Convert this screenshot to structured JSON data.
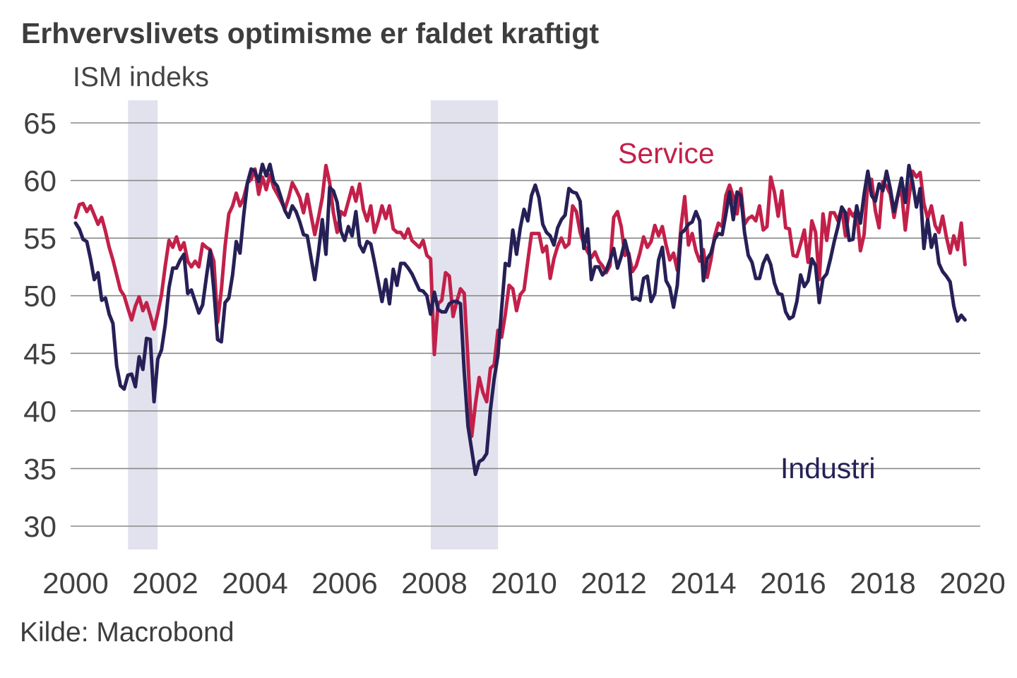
{
  "header": {
    "title": "Erhvervslivets optimisme er faldet kraftigt",
    "subtitle": "ISM indeks"
  },
  "source": "Kilde: Macrobond",
  "colors": {
    "service": "#c2204a",
    "industri": "#262057",
    "recession_band": "#e2e2ee",
    "gridline": "#8a8a8a",
    "axis_text": "#404040"
  },
  "chart_data": {
    "type": "line",
    "title": "Erhvervslivets optimisme er faldet kraftigt",
    "ylabel": "ISM indeks",
    "xlabel": "",
    "grid": "horizontal",
    "legend_position": "inline-annotations",
    "ylim": [
      30,
      65
    ],
    "yticks": [
      65,
      60,
      55,
      50,
      45,
      40,
      35,
      30
    ],
    "xticks": [
      2000,
      2002,
      2004,
      2006,
      2008,
      2010,
      2012,
      2014,
      2016,
      2018,
      2020
    ],
    "frequency": "monthly",
    "x_start": "2000-01",
    "x_end": "2019-11",
    "recession_bands": [
      {
        "from": 2001.17,
        "to": 2001.83
      },
      {
        "from": 2007.92,
        "to": 2009.42
      }
    ],
    "series": [
      {
        "name": "Service",
        "color": "#c2204a",
        "values": [
          56.8,
          57.9,
          58.0,
          57.3,
          57.8,
          57.0,
          56.2,
          56.8,
          55.6,
          54.2,
          53.1,
          51.8,
          50.5,
          50.0,
          48.9,
          47.9,
          49.1,
          49.9,
          48.7,
          49.4,
          48.3,
          47.1,
          48.5,
          50.1,
          52.6,
          54.8,
          54.2,
          55.1,
          54.0,
          54.6,
          53.0,
          52.5,
          53.0,
          52.5,
          54.5,
          54.2,
          54.0,
          53.0,
          47.7,
          50.5,
          54.3,
          57.1,
          57.8,
          58.9,
          57.8,
          58.5,
          59.8,
          60.1,
          61.0,
          58.8,
          60.3,
          59.2,
          60.5,
          59.4,
          58.8,
          58.2,
          57.5,
          58.5,
          59.8,
          59.2,
          58.5,
          57.2,
          58.8,
          57.0,
          55.3,
          56.8,
          58.5,
          61.3,
          59.8,
          57.2,
          55.5,
          57.3,
          57.0,
          58.2,
          59.4,
          58.2,
          59.7,
          57.5,
          56.5,
          57.8,
          55.5,
          56.5,
          57.8,
          56.7,
          57.8,
          55.8,
          55.5,
          55.5,
          55.0,
          55.8,
          54.8,
          54.5,
          54.2,
          54.8,
          53.5,
          53.2,
          44.9,
          49.3,
          49.6,
          52.0,
          51.7,
          48.2,
          49.5,
          50.6,
          50.2,
          44.4,
          37.8,
          40.6,
          42.9,
          41.6,
          40.8,
          43.7,
          44.0,
          47.0,
          46.4,
          48.4,
          50.9,
          50.6,
          48.7,
          50.1,
          50.5,
          53.0,
          55.4,
          55.4,
          55.4,
          53.8,
          54.3,
          51.5,
          53.2,
          54.3,
          55.0,
          54.2,
          54.5,
          57.8,
          57.3,
          55.5,
          54.5,
          53.8,
          53.3,
          53.8,
          53.0,
          52.6,
          52.0,
          52.6,
          56.8,
          57.3,
          56.0,
          53.5,
          53.7,
          52.1,
          52.6,
          53.7,
          55.1,
          54.2,
          54.7,
          56.1,
          55.2,
          56.0,
          54.4,
          53.1,
          53.7,
          52.2,
          56.0,
          58.6,
          54.4,
          55.4,
          53.9,
          53.0,
          54.0,
          51.6,
          53.1,
          55.2,
          56.3,
          56.0,
          58.7,
          59.6,
          58.6,
          57.1,
          59.3,
          56.2,
          56.7,
          56.9,
          56.5,
          57.8,
          55.7,
          56.0,
          60.3,
          59.0,
          56.9,
          59.1,
          55.9,
          55.8,
          53.5,
          53.4,
          54.5,
          55.7,
          52.9,
          56.5,
          55.5,
          51.4,
          57.1,
          54.8,
          57.2,
          57.2,
          56.5,
          57.6,
          55.2,
          57.5,
          56.9,
          57.4,
          53.9,
          55.3,
          59.8,
          60.1,
          57.4,
          55.9,
          59.9,
          59.5,
          58.8,
          56.8,
          58.6,
          59.1,
          55.7,
          58.5,
          60.8,
          60.3,
          60.7,
          58.0,
          56.7,
          57.8,
          56.1,
          55.5,
          56.9,
          55.1,
          53.7,
          55.2,
          54.0,
          56.3,
          52.7
        ]
      },
      {
        "name": "Industri",
        "color": "#262057",
        "values": [
          56.3,
          55.8,
          54.9,
          54.7,
          53.2,
          51.4,
          52.0,
          49.6,
          49.8,
          48.4,
          47.6,
          43.9,
          42.2,
          41.9,
          43.1,
          43.2,
          42.1,
          44.7,
          43.6,
          46.3,
          46.2,
          40.8,
          44.5,
          45.3,
          47.5,
          50.7,
          52.4,
          52.4,
          53.1,
          53.6,
          50.2,
          50.5,
          49.5,
          48.5,
          49.2,
          51.6,
          53.9,
          50.5,
          46.2,
          46.0,
          49.4,
          49.8,
          51.8,
          54.7,
          53.7,
          57.0,
          59.8,
          61.0,
          60.8,
          59.9,
          61.4,
          60.4,
          61.4,
          59.9,
          59.5,
          58.5,
          57.4,
          56.8,
          57.8,
          57.3,
          56.4,
          55.3,
          55.2,
          53.3,
          51.4,
          53.8,
          56.6,
          53.6,
          59.4,
          59.1,
          58.1,
          55.6,
          54.8,
          56.0,
          55.2,
          57.3,
          54.4,
          53.8,
          54.7,
          54.5,
          52.9,
          51.2,
          49.5,
          51.4,
          49.3,
          52.3,
          50.9,
          52.8,
          52.8,
          52.4,
          51.9,
          51.2,
          50.5,
          50.4,
          50.0,
          48.4,
          50.3,
          48.8,
          48.6,
          48.6,
          49.3,
          49.5,
          49.5,
          49.3,
          43.4,
          38.7,
          36.6,
          34.5,
          35.6,
          35.8,
          36.3,
          40.1,
          42.8,
          44.8,
          48.9,
          52.8,
          52.6,
          55.7,
          53.6,
          55.9,
          57.5,
          56.5,
          58.7,
          59.6,
          58.5,
          56.2,
          55.5,
          55.2,
          54.4,
          55.9,
          56.6,
          57.0,
          59.3,
          59.0,
          58.9,
          58.2,
          54.1,
          55.8,
          51.4,
          52.5,
          52.5,
          51.8,
          52.2,
          53.1,
          54.1,
          52.4,
          53.4,
          54.8,
          53.5,
          49.7,
          49.8,
          49.6,
          51.5,
          51.7,
          49.5,
          50.2,
          53.1,
          54.2,
          51.3,
          50.7,
          49.0,
          50.9,
          55.4,
          55.7,
          56.2,
          56.4,
          57.3,
          56.5,
          51.3,
          53.2,
          53.7,
          54.9,
          55.4,
          55.3,
          57.1,
          59.0,
          56.6,
          59.0,
          58.7,
          55.5,
          53.5,
          52.9,
          51.5,
          51.5,
          52.8,
          53.5,
          52.7,
          51.1,
          50.2,
          50.1,
          48.6,
          48.0,
          48.2,
          49.5,
          51.8,
          50.8,
          51.3,
          53.2,
          52.6,
          49.4,
          51.5,
          51.9,
          53.2,
          54.7,
          56.0,
          57.7,
          57.2,
          54.8,
          54.9,
          57.8,
          56.3,
          58.8,
          60.8,
          58.7,
          58.2,
          59.7,
          59.1,
          60.8,
          59.3,
          57.3,
          58.7,
          60.2,
          58.1,
          61.3,
          59.8,
          57.7,
          59.3,
          54.1,
          56.6,
          54.2,
          55.3,
          52.8,
          52.1,
          51.7,
          51.2,
          49.1,
          47.8,
          48.3,
          47.9
        ]
      }
    ]
  }
}
